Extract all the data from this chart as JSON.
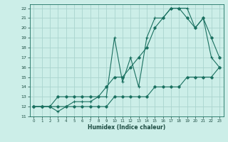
{
  "xlabel": "Humidex (Indice chaleur)",
  "bg_color": "#cceee8",
  "grid_color": "#aad4ce",
  "line_color": "#1a7060",
  "xlim": [
    -0.5,
    23.5
  ],
  "ylim": [
    11,
    22.4
  ],
  "xticks": [
    0,
    1,
    2,
    3,
    4,
    5,
    6,
    7,
    8,
    9,
    10,
    11,
    12,
    13,
    14,
    15,
    16,
    17,
    18,
    19,
    20,
    21,
    22,
    23
  ],
  "yticks": [
    11,
    12,
    13,
    14,
    15,
    16,
    17,
    18,
    19,
    20,
    21,
    22
  ],
  "line1_x": [
    0,
    1,
    2,
    3,
    4,
    5,
    6,
    7,
    8,
    9,
    10,
    11,
    12,
    13,
    14,
    15,
    16,
    17,
    18,
    19,
    20,
    21,
    22,
    23
  ],
  "line1_y": [
    12,
    12,
    12,
    12,
    12,
    12,
    12,
    12,
    12,
    12,
    13,
    13,
    13,
    13,
    13,
    14,
    14,
    14,
    14,
    15,
    15,
    15,
    15,
    16
  ],
  "line2_x": [
    0,
    1,
    2,
    3,
    4,
    5,
    6,
    7,
    8,
    9,
    10,
    11,
    12,
    13,
    14,
    15,
    16,
    17,
    18,
    19,
    20,
    21,
    22,
    23
  ],
  "line2_y": [
    12,
    12,
    12,
    13,
    13,
    13,
    13,
    13,
    13,
    14,
    15,
    15,
    16,
    17,
    18,
    20,
    21,
    22,
    22,
    21,
    20,
    21,
    19,
    17
  ],
  "line3_x": [
    0,
    1,
    2,
    3,
    4,
    5,
    6,
    7,
    8,
    9,
    10,
    11,
    12,
    13,
    14,
    15,
    16,
    17,
    18,
    19,
    20,
    21,
    22,
    23
  ],
  "line3_y": [
    12,
    12,
    12,
    11.5,
    12,
    12.5,
    12.5,
    12.5,
    13,
    13,
    19,
    14.5,
    17,
    14,
    19,
    21,
    21,
    22,
    22,
    22,
    20,
    21,
    17,
    16
  ]
}
